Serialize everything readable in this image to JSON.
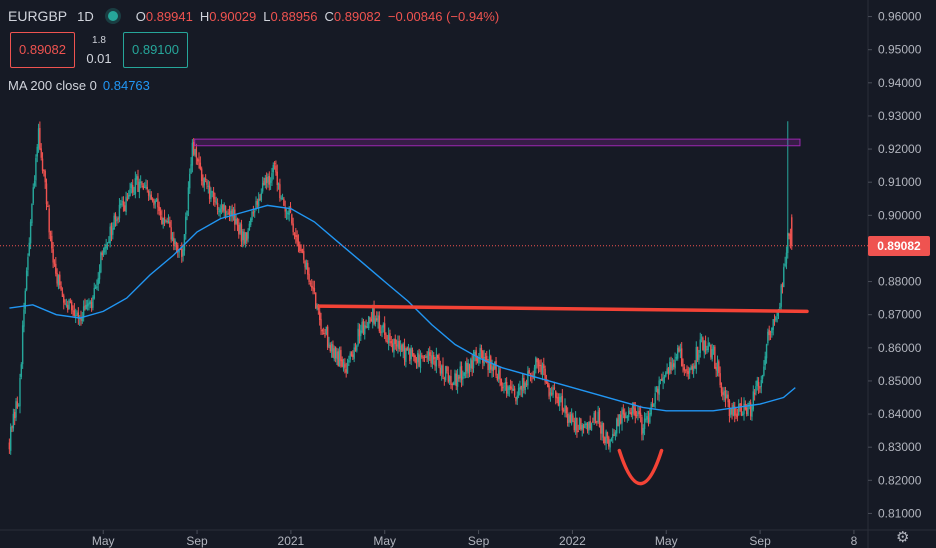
{
  "legend": {
    "symbol": "EURGBP",
    "timeframe": "1D",
    "open_label": "O",
    "open": "0.89941",
    "high_label": "H",
    "high": "0.90029",
    "low_label": "L",
    "low": "0.88956",
    "close_label": "C",
    "close": "0.89082",
    "change": "−0.00846 (−0.94%)"
  },
  "trade": {
    "sell": "0.89082",
    "spread_top": "1.8",
    "spread_bottom": "0.01",
    "buy": "0.89100"
  },
  "indicator": {
    "label": "MA 200 close 0",
    "value": "0.84763"
  },
  "last_price_tag": "0.89082",
  "colors": {
    "background": "#161a25",
    "up": "#26a69a",
    "down": "#ef5350",
    "ma": "#2196f3",
    "resistance_zone": "#9c27b0",
    "neckline": "#f44336"
  },
  "icons": {
    "settings": "gear-icon"
  },
  "chart_data": {
    "type": "candlestick",
    "symbol": "EURGBP",
    "timeframe": "1D",
    "ylim": [
      0.805,
      0.965
    ],
    "y_ticks": [
      "0.81000",
      "0.82000",
      "0.83000",
      "0.84000",
      "0.85000",
      "0.86000",
      "0.87000",
      "0.88000",
      "0.89000",
      "0.90000",
      "0.91000",
      "0.92000",
      "0.93000",
      "0.94000",
      "0.95000",
      "0.96000"
    ],
    "x_ticks": [
      "May",
      "Sep",
      "2021",
      "May",
      "Sep",
      "2022",
      "May",
      "Sep",
      "8"
    ],
    "x_tick_months": [
      4,
      8,
      12,
      16,
      20,
      24,
      28,
      32,
      36
    ],
    "x_range_months": [
      -0.4,
      36.6
    ],
    "close_path": [
      [
        0.0,
        0.832
      ],
      [
        0.4,
        0.845
      ],
      [
        0.7,
        0.88
      ],
      [
        1.0,
        0.905
      ],
      [
        1.25,
        0.925
      ],
      [
        1.5,
        0.91
      ],
      [
        1.8,
        0.888
      ],
      [
        2.2,
        0.877
      ],
      [
        2.6,
        0.873
      ],
      [
        3.0,
        0.87
      ],
      [
        3.5,
        0.872
      ],
      [
        4.0,
        0.89
      ],
      [
        4.5,
        0.898
      ],
      [
        5.0,
        0.905
      ],
      [
        5.5,
        0.91
      ],
      [
        6.0,
        0.905
      ],
      [
        6.5,
        0.9
      ],
      [
        7.0,
        0.892
      ],
      [
        7.4,
        0.888
      ],
      [
        7.8,
        0.92
      ],
      [
        8.2,
        0.912
      ],
      [
        8.6,
        0.905
      ],
      [
        9.0,
        0.903
      ],
      [
        9.5,
        0.9
      ],
      [
        10.0,
        0.893
      ],
      [
        10.4,
        0.9
      ],
      [
        10.8,
        0.91
      ],
      [
        11.3,
        0.913
      ],
      [
        11.8,
        0.902
      ],
      [
        12.3,
        0.893
      ],
      [
        12.8,
        0.88
      ],
      [
        13.2,
        0.87
      ],
      [
        13.6,
        0.862
      ],
      [
        14.0,
        0.857
      ],
      [
        14.4,
        0.855
      ],
      [
        14.7,
        0.86
      ],
      [
        15.0,
        0.866
      ],
      [
        15.5,
        0.87
      ],
      [
        16.0,
        0.865
      ],
      [
        16.5,
        0.86
      ],
      [
        17.0,
        0.858
      ],
      [
        17.5,
        0.856
      ],
      [
        18.0,
        0.857
      ],
      [
        18.5,
        0.853
      ],
      [
        19.0,
        0.85
      ],
      [
        19.5,
        0.855
      ],
      [
        20.0,
        0.858
      ],
      [
        20.5,
        0.855
      ],
      [
        21.0,
        0.85
      ],
      [
        21.5,
        0.845
      ],
      [
        22.0,
        0.85
      ],
      [
        22.5,
        0.855
      ],
      [
        23.0,
        0.848
      ],
      [
        23.5,
        0.843
      ],
      [
        24.0,
        0.838
      ],
      [
        24.5,
        0.835
      ],
      [
        25.0,
        0.84
      ],
      [
        25.5,
        0.832
      ],
      [
        26.0,
        0.838
      ],
      [
        26.5,
        0.842
      ],
      [
        27.0,
        0.836
      ],
      [
        27.4,
        0.842
      ],
      [
        27.8,
        0.85
      ],
      [
        28.2,
        0.855
      ],
      [
        28.6,
        0.858
      ],
      [
        29.0,
        0.852
      ],
      [
        29.5,
        0.862
      ],
      [
        30.0,
        0.858
      ],
      [
        30.4,
        0.848
      ],
      [
        30.8,
        0.84
      ],
      [
        31.2,
        0.842
      ],
      [
        31.6,
        0.842
      ],
      [
        32.0,
        0.85
      ],
      [
        32.4,
        0.865
      ],
      [
        32.8,
        0.873
      ],
      [
        33.0,
        0.882
      ],
      [
        33.2,
        0.895
      ],
      [
        33.35,
        0.891
      ]
    ],
    "ma200_path": [
      [
        0.0,
        0.872
      ],
      [
        1.0,
        0.873
      ],
      [
        2.0,
        0.87
      ],
      [
        3.0,
        0.869
      ],
      [
        4.0,
        0.871
      ],
      [
        5.0,
        0.875
      ],
      [
        6.0,
        0.882
      ],
      [
        7.0,
        0.888
      ],
      [
        8.0,
        0.895
      ],
      [
        9.0,
        0.899
      ],
      [
        10.0,
        0.901
      ],
      [
        11.0,
        0.903
      ],
      [
        12.0,
        0.902
      ],
      [
        13.0,
        0.898
      ],
      [
        14.0,
        0.892
      ],
      [
        15.0,
        0.886
      ],
      [
        16.0,
        0.88
      ],
      [
        17.0,
        0.874
      ],
      [
        18.0,
        0.867
      ],
      [
        19.0,
        0.861
      ],
      [
        20.0,
        0.857
      ],
      [
        21.0,
        0.854
      ],
      [
        22.0,
        0.852
      ],
      [
        23.0,
        0.85
      ],
      [
        24.0,
        0.848
      ],
      [
        25.0,
        0.846
      ],
      [
        26.0,
        0.844
      ],
      [
        27.0,
        0.842
      ],
      [
        28.0,
        0.841
      ],
      [
        29.0,
        0.841
      ],
      [
        30.0,
        0.841
      ],
      [
        31.0,
        0.842
      ],
      [
        32.0,
        0.843
      ],
      [
        33.0,
        0.845
      ],
      [
        33.5,
        0.848
      ]
    ],
    "spike_high": 0.9284,
    "resistance_zone": {
      "y": [
        0.921,
        0.923
      ],
      "x": [
        7.9,
        33.7
      ]
    },
    "neckline": {
      "y": [
        0.8726,
        0.871
      ],
      "x": [
        13.2,
        34.0
      ]
    },
    "cup_curve": {
      "x": [
        26.0,
        26.9,
        27.8
      ],
      "y": [
        0.829,
        0.819,
        0.829
      ]
    },
    "last_price": 0.89082
  }
}
